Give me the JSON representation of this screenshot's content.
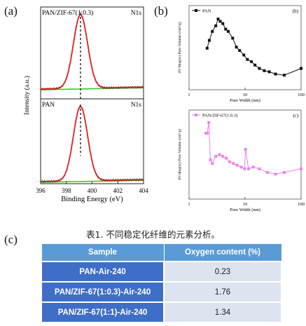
{
  "panel_labels": {
    "a": "(a)",
    "b": "(b)",
    "c": "(c)"
  },
  "colors": {
    "fit_red": "#e02020",
    "data_black": "#111111",
    "baseline_green": "#33cc33",
    "pan_pore": "#111111",
    "zif_pore": "#ee82ee",
    "table_header": "#5b9bd5",
    "table_sample": "#3f6ec8",
    "table_value": "#dde4f0"
  },
  "chart_data": [
    {
      "type": "line",
      "panel": "a-top",
      "sample_label": "PAN/ZIF-67(1:0.3)",
      "element_label": "N1s",
      "xlabel": "Binding Energy (eV)",
      "ylabel": "Intensity (a.u.)",
      "xlim": [
        396,
        404
      ],
      "x_ticks": [
        "396",
        "398",
        "400",
        "402",
        "404"
      ],
      "peak_center": 399.1,
      "peak_fwhm": 1.3,
      "peak_relative_height": 1.0,
      "grid": false
    },
    {
      "type": "line",
      "panel": "a-bottom",
      "sample_label": "PAN",
      "element_label": "N1s",
      "xlabel": "Binding Energy (eV)",
      "ylabel": "Intensity (a.u.)",
      "xlim": [
        396,
        404
      ],
      "x_ticks": [
        "396",
        "398",
        "400",
        "402",
        "404"
      ],
      "peak_center": 399.1,
      "peak_fwhm": 1.3,
      "peak_relative_height": 1.0,
      "grid": false
    },
    {
      "type": "line",
      "panel": "b-top",
      "tag": "(b)",
      "series": [
        {
          "name": "PAN",
          "x": [
            2.1,
            2.3,
            2.6,
            3.0,
            3.3,
            3.6,
            4.0,
            4.5,
            5.0,
            6.0,
            7.0,
            8.0,
            9.5,
            11,
            13,
            15,
            18,
            22,
            27,
            35,
            50,
            100
          ],
          "y": [
            0.52,
            0.59,
            0.67,
            0.72,
            0.78,
            0.76,
            0.74,
            0.69,
            0.67,
            0.61,
            0.53,
            0.5,
            0.46,
            0.42,
            0.4,
            0.37,
            0.34,
            0.32,
            0.31,
            0.29,
            0.28,
            0.34
          ]
        }
      ],
      "xlabel": "Pore Width (nm)",
      "ylabel": "dV/dlog(w) Pore Volume (cm³/g)",
      "xlim": [
        1,
        100
      ],
      "x_ticks": [
        "1",
        "10",
        "100"
      ],
      "x_scale": "log"
    },
    {
      "type": "line",
      "panel": "b-bottom",
      "tag": "(c)",
      "series": [
        {
          "name": "PAN/ZIF-67(1:0.3)",
          "x": [
            2.0,
            2.1,
            2.25,
            2.4,
            2.6,
            3.0,
            3.5,
            4.0,
            4.6,
            5.3,
            6.2,
            7.2,
            8.5,
            9.8,
            10.2,
            11.5,
            14,
            18,
            25,
            35,
            50,
            100
          ],
          "y": [
            0.37,
            0.37,
            0.43,
            0.22,
            0.2,
            0.24,
            0.25,
            0.24,
            0.23,
            0.21,
            0.2,
            0.19,
            0.18,
            0.17,
            0.28,
            0.17,
            0.18,
            0.17,
            0.15,
            0.14,
            0.15,
            0.17
          ]
        }
      ],
      "xlabel": "Pore Width (nm)",
      "ylabel": "dV/dlog(w) Pore Volume (cm³/g)",
      "xlim": [
        1,
        100
      ],
      "x_ticks": [
        "1",
        "10",
        "100"
      ],
      "x_scale": "log",
      "ylim": [
        0,
        0.5
      ]
    }
  ],
  "table": {
    "caption": "表1. 不同稳定化纤维的元素分析。",
    "headers": [
      "Sample",
      "Oxygen content (%)"
    ],
    "rows": [
      {
        "sample": "PAN-Air-240",
        "oxygen": "0.23"
      },
      {
        "sample": "PAN/ZIF-67(1:0.3)-Air-240",
        "oxygen": "1.76"
      },
      {
        "sample": "PAN/ZIF-67(1:1)-Air-240",
        "oxygen": "1.34"
      }
    ]
  }
}
